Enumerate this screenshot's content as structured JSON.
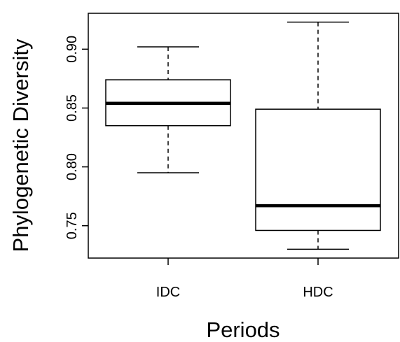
{
  "chart_data": {
    "type": "boxplot",
    "title": "",
    "xlabel": "Periods",
    "ylabel": "Phylogenetic Diversity",
    "categories": [
      "IDC",
      "HDC"
    ],
    "boxes": [
      {
        "category": "IDC",
        "whisker_low": 0.795,
        "q1": 0.835,
        "median": 0.854,
        "q3": 0.874,
        "whisker_high": 0.902
      },
      {
        "category": "HDC",
        "whisker_low": 0.73,
        "q1": 0.746,
        "median": 0.767,
        "q3": 0.849,
        "whisker_high": 0.923
      }
    ],
    "ylim": [
      0.7225,
      0.9305
    ],
    "yticks": [
      0.75,
      0.8,
      0.85,
      0.9
    ],
    "ytick_labels": [
      "0.75",
      "0.80",
      "0.85",
      "0.90"
    ],
    "grid": false,
    "legend": "none"
  }
}
